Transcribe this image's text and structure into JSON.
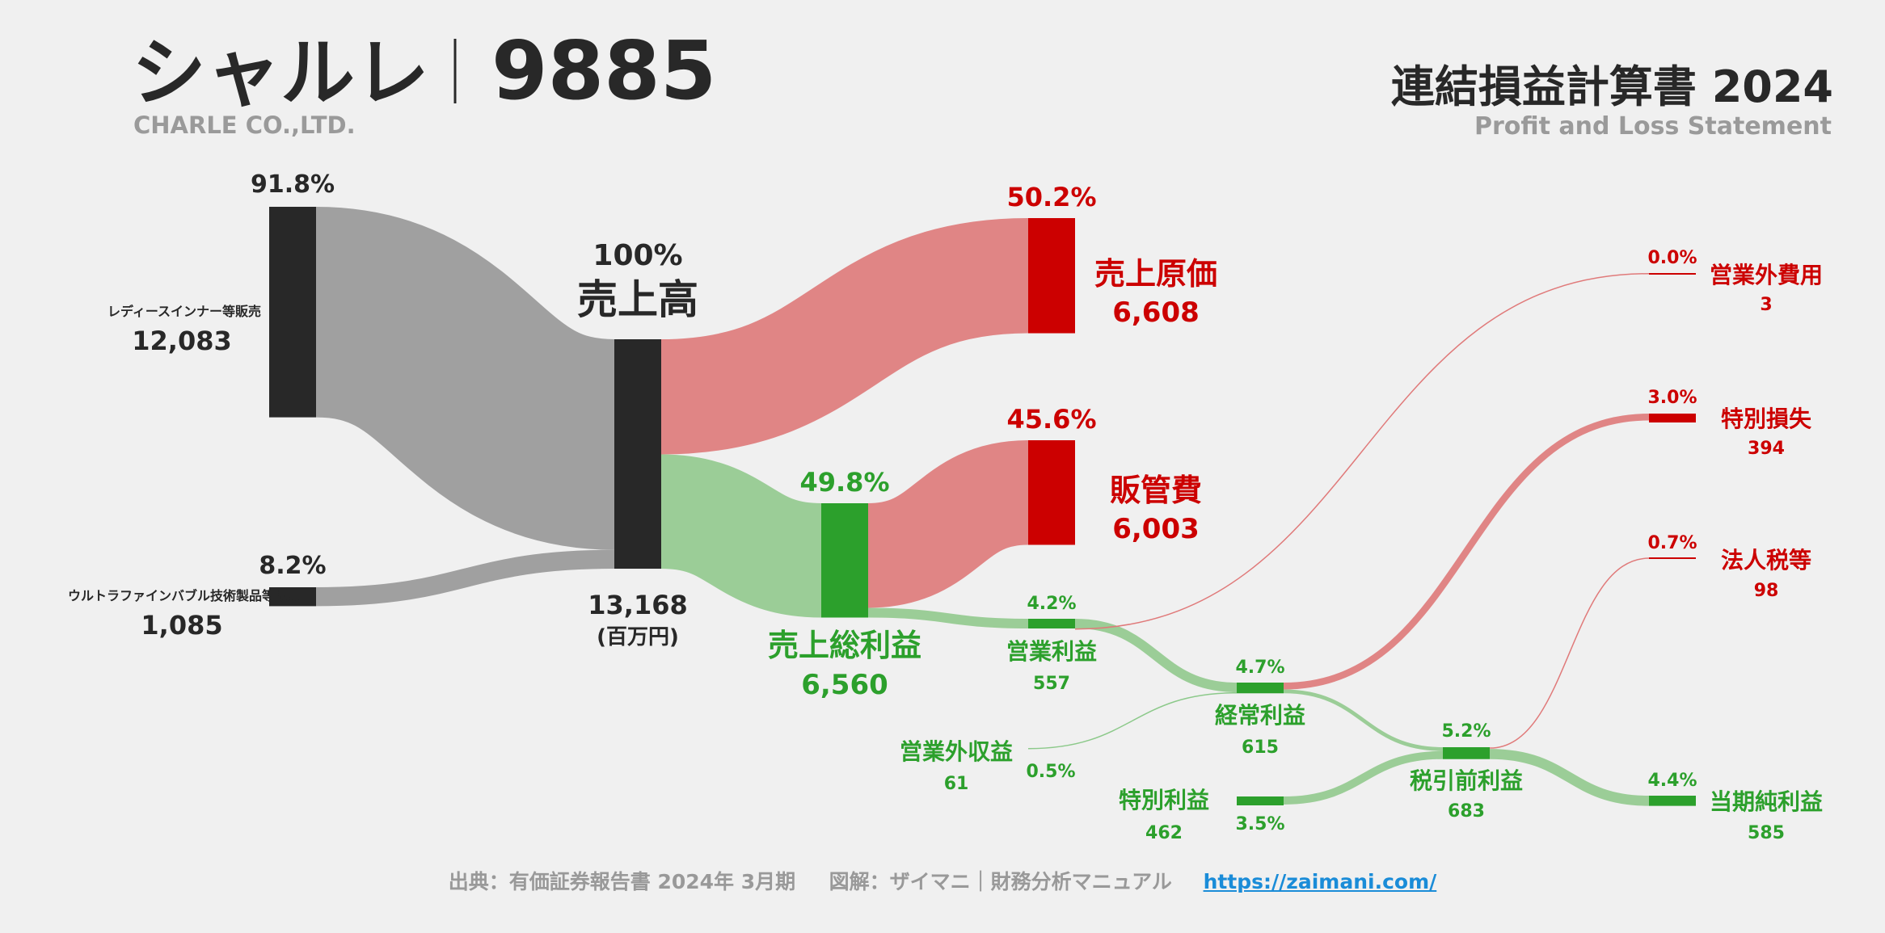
{
  "header": {
    "company": "シャルレ",
    "ticker": "9885",
    "company_en": "CHARLE CO.,LTD.",
    "statement": "連結損益計算書 2024",
    "statement_en": "Profit and Loss Statement"
  },
  "footer": {
    "source": "出典：有価証券報告書 2024年 3月期",
    "credit": "図解：ザイマニ｜財務分析マニュアル",
    "url": "https://zaimani.com/"
  },
  "colors": {
    "revenue": "#282828",
    "revenue_flow": "#a0a0a0",
    "cost": "#cc0000",
    "cost_flow": "#e08585",
    "profit": "#2ca02c",
    "profit_flow": "#9bcd97",
    "muted": "#999999"
  },
  "chart_data": {
    "type": "sankey",
    "unit": "(百万円)",
    "nodes": [
      {
        "id": "seg1",
        "label": "レディースインナー等販売",
        "value": 12083,
        "display": "12,083",
        "pct": "91.8%",
        "color": "revenue"
      },
      {
        "id": "seg2",
        "label": "ウルトラファインバブル技術製品等販売",
        "value": 1085,
        "display": "1,085",
        "pct": "8.2%",
        "color": "revenue"
      },
      {
        "id": "revenue",
        "label": "売上高",
        "value": 13168,
        "display": "13,168",
        "pct": "100%",
        "color": "revenue"
      },
      {
        "id": "cogs",
        "label": "売上原価",
        "value": 6608,
        "display": "6,608",
        "pct": "50.2%",
        "color": "cost"
      },
      {
        "id": "gross",
        "label": "売上総利益",
        "value": 6560,
        "display": "6,560",
        "pct": "49.8%",
        "color": "profit"
      },
      {
        "id": "sga",
        "label": "販管費",
        "value": 6003,
        "display": "6,003",
        "pct": "45.6%",
        "color": "cost"
      },
      {
        "id": "op",
        "label": "営業利益",
        "value": 557,
        "display": "557",
        "pct": "4.2%",
        "color": "profit"
      },
      {
        "id": "nonop_inc",
        "label": "営業外収益",
        "value": 61,
        "display": "61",
        "pct": "0.5%",
        "color": "profit"
      },
      {
        "id": "nonop_exp",
        "label": "営業外費用",
        "value": 3,
        "display": "3",
        "pct": "0.0%",
        "color": "cost"
      },
      {
        "id": "ordinary",
        "label": "経常利益",
        "value": 615,
        "display": "615",
        "pct": "4.7%",
        "color": "profit"
      },
      {
        "id": "sp_gain",
        "label": "特別利益",
        "value": 462,
        "display": "462",
        "pct": "3.5%",
        "color": "profit"
      },
      {
        "id": "sp_loss",
        "label": "特別損失",
        "value": 394,
        "display": "394",
        "pct": "3.0%",
        "color": "cost"
      },
      {
        "id": "pretax",
        "label": "税引前利益",
        "value": 683,
        "display": "683",
        "pct": "5.2%",
        "color": "profit"
      },
      {
        "id": "tax",
        "label": "法人税等",
        "value": 98,
        "display": "98",
        "pct": "0.7%",
        "color": "cost"
      },
      {
        "id": "net",
        "label": "当期純利益",
        "value": 585,
        "display": "585",
        "pct": "4.4%",
        "color": "profit"
      }
    ],
    "links": [
      {
        "source": "seg1",
        "target": "revenue",
        "value": 12083
      },
      {
        "source": "seg2",
        "target": "revenue",
        "value": 1085
      },
      {
        "source": "revenue",
        "target": "cogs",
        "value": 6608
      },
      {
        "source": "revenue",
        "target": "gross",
        "value": 6560
      },
      {
        "source": "gross",
        "target": "sga",
        "value": 6003
      },
      {
        "source": "gross",
        "target": "op",
        "value": 557
      },
      {
        "source": "op",
        "target": "ordinary",
        "value": 554
      },
      {
        "source": "op",
        "target": "nonop_exp",
        "value": 3
      },
      {
        "source": "nonop_inc",
        "target": "ordinary",
        "value": 61
      },
      {
        "source": "ordinary",
        "target": "sp_loss",
        "value": 394
      },
      {
        "source": "ordinary",
        "target": "pretax",
        "value": 221
      },
      {
        "source": "sp_gain",
        "target": "pretax",
        "value": 462
      },
      {
        "source": "pretax",
        "target": "tax",
        "value": 98
      },
      {
        "source": "pretax",
        "target": "net",
        "value": 585
      }
    ]
  }
}
